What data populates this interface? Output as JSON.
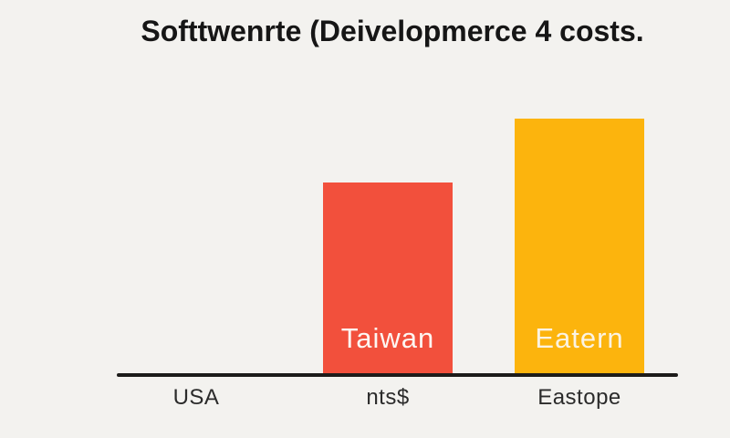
{
  "chart_data": {
    "type": "bar",
    "title": "Softtwenrte (Deivelopmerce 4 costs.",
    "categories": [
      "USA",
      "nts$",
      "Eastope"
    ],
    "values": [
      0,
      209,
      279
    ],
    "value_scale": "estimated-bar-height-px (no y-axis or value labels shown)",
    "bar_labels": [
      "",
      "Taiwan",
      "Eatern"
    ],
    "bar_colors": [
      "",
      "#f2503c",
      "#fcb40d"
    ],
    "bar_label_colors": [
      "",
      "#fdf6f2",
      "#fbf3e2"
    ],
    "xlabel": "",
    "ylabel": "",
    "y_axis_shown": false,
    "gridlines": false,
    "legend": false,
    "x_axis_line_color": "#1d1c1a",
    "background_color": "#f3f2ef"
  }
}
